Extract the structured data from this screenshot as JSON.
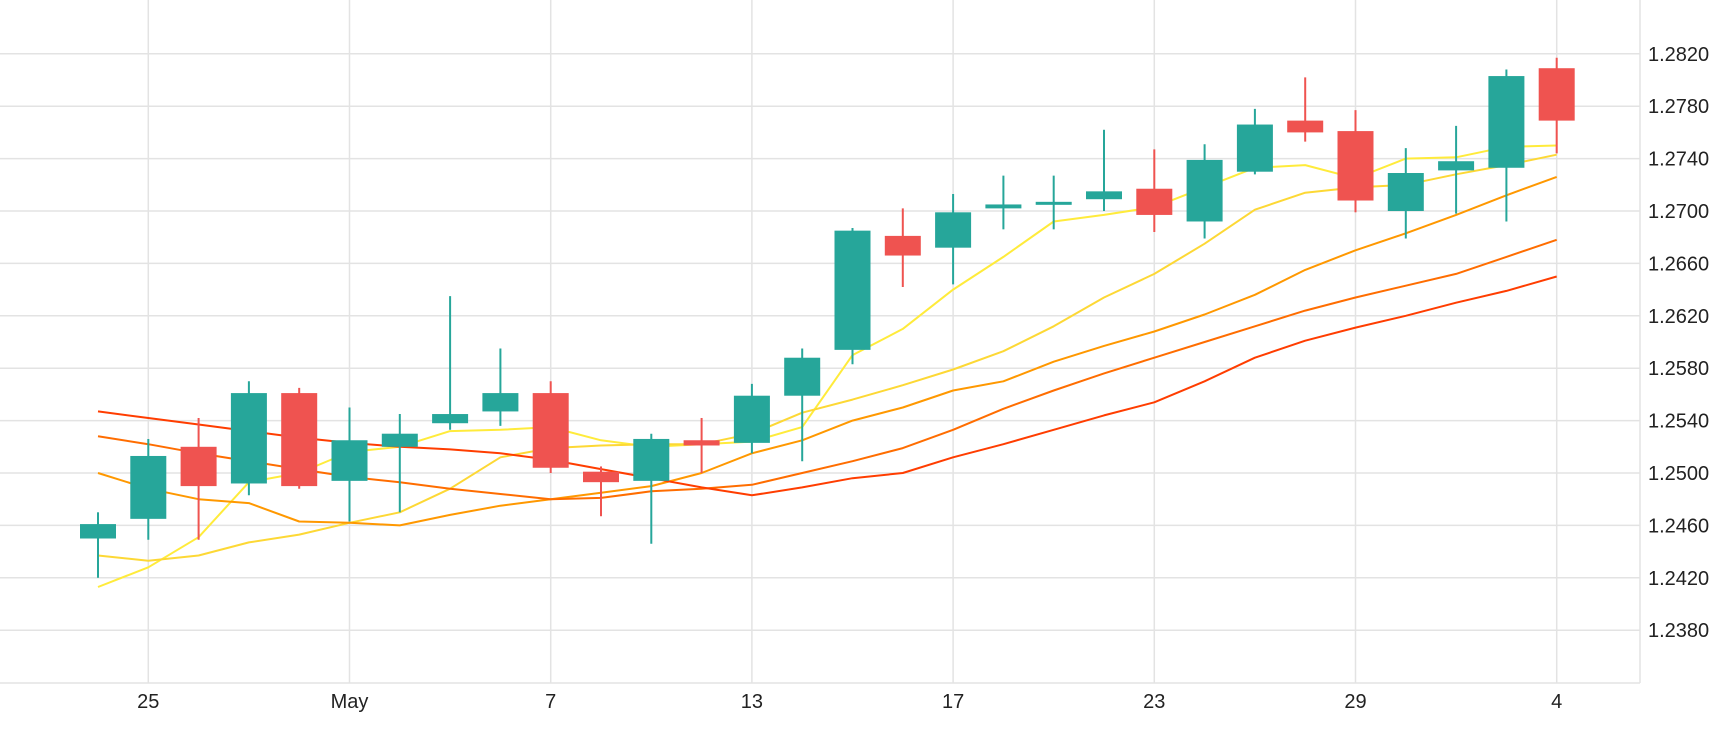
{
  "chart_data": {
    "type": "candlestick",
    "colors": {
      "up": "#26a69a",
      "down": "#ef5350",
      "grid": "#e3e3e3"
    },
    "x_ticks": [
      {
        "label": "25",
        "index": 1
      },
      {
        "label": "May",
        "index": 5
      },
      {
        "label": "7",
        "index": 9
      },
      {
        "label": "13",
        "index": 13
      },
      {
        "label": "17",
        "index": 17
      },
      {
        "label": "23",
        "index": 21
      },
      {
        "label": "29",
        "index": 25
      },
      {
        "label": "4",
        "index": 29
      }
    ],
    "y_ticks": [
      "1.2380",
      "1.2420",
      "1.2460",
      "1.2500",
      "1.2540",
      "1.2580",
      "1.2620",
      "1.2660",
      "1.2700",
      "1.2740",
      "1.2780",
      "1.2820"
    ],
    "ylim": [
      1.234,
      1.286
    ],
    "candles": [
      {
        "o": 1.245,
        "h": 1.247,
        "l": 1.242,
        "c": 1.2461
      },
      {
        "o": 1.2465,
        "h": 1.2526,
        "l": 1.2449,
        "c": 1.2513
      },
      {
        "o": 1.252,
        "h": 1.2542,
        "l": 1.2449,
        "c": 1.249
      },
      {
        "o": 1.2492,
        "h": 1.257,
        "l": 1.2483,
        "c": 1.2561
      },
      {
        "o": 1.2561,
        "h": 1.2565,
        "l": 1.2488,
        "c": 1.249
      },
      {
        "o": 1.2494,
        "h": 1.255,
        "l": 1.2463,
        "c": 1.2525
      },
      {
        "o": 1.252,
        "h": 1.2545,
        "l": 1.247,
        "c": 1.253
      },
      {
        "o": 1.2538,
        "h": 1.2635,
        "l": 1.2533,
        "c": 1.2545
      },
      {
        "o": 1.2547,
        "h": 1.2595,
        "l": 1.2536,
        "c": 1.2561
      },
      {
        "o": 1.2561,
        "h": 1.257,
        "l": 1.25,
        "c": 1.2504
      },
      {
        "o": 1.2501,
        "h": 1.2505,
        "l": 1.2467,
        "c": 1.2493
      },
      {
        "o": 1.2494,
        "h": 1.253,
        "l": 1.2446,
        "c": 1.2526
      },
      {
        "o": 1.2525,
        "h": 1.2542,
        "l": 1.25,
        "c": 1.2521
      },
      {
        "o": 1.2523,
        "h": 1.2568,
        "l": 1.2515,
        "c": 1.2559
      },
      {
        "o": 1.2559,
        "h": 1.2595,
        "l": 1.2509,
        "c": 1.2588
      },
      {
        "o": 1.2594,
        "h": 1.2687,
        "l": 1.2583,
        "c": 1.2685
      },
      {
        "o": 1.2681,
        "h": 1.2702,
        "l": 1.2642,
        "c": 1.2666
      },
      {
        "o": 1.2672,
        "h": 1.2713,
        "l": 1.2644,
        "c": 1.2699
      },
      {
        "o": 1.2702,
        "h": 1.2727,
        "l": 1.2686,
        "c": 1.2705
      },
      {
        "o": 1.2706,
        "h": 1.2727,
        "l": 1.2686,
        "c": 1.2707
      },
      {
        "o": 1.2709,
        "h": 1.2762,
        "l": 1.27,
        "c": 1.2715
      },
      {
        "o": 1.2717,
        "h": 1.2747,
        "l": 1.2684,
        "c": 1.2697
      },
      {
        "o": 1.2692,
        "h": 1.2751,
        "l": 1.2679,
        "c": 1.2739
      },
      {
        "o": 1.273,
        "h": 1.2778,
        "l": 1.2728,
        "c": 1.2766
      },
      {
        "o": 1.2769,
        "h": 1.2802,
        "l": 1.2753,
        "c": 1.276
      },
      {
        "o": 1.2761,
        "h": 1.2777,
        "l": 1.2699,
        "c": 1.2708
      },
      {
        "o": 1.27,
        "h": 1.2748,
        "l": 1.2679,
        "c": 1.2729
      },
      {
        "o": 1.2731,
        "h": 1.2765,
        "l": 1.2698,
        "c": 1.2738
      },
      {
        "o": 1.2733,
        "h": 1.2808,
        "l": 1.2692,
        "c": 1.2803
      },
      {
        "o": 1.2809,
        "h": 1.2817,
        "l": 1.2744,
        "c": 1.2769
      }
    ],
    "series": [
      {
        "color": "#ffeb3b",
        "values": [
          1.2413,
          1.2428,
          1.2451,
          1.2493,
          1.25,
          1.2516,
          1.252,
          1.2532,
          1.2533,
          1.2535,
          1.2525,
          1.252,
          1.2522,
          1.2524,
          1.2535,
          1.259,
          1.261,
          1.264,
          1.2665,
          1.2692,
          1.2697,
          1.2703,
          1.2718,
          1.2733,
          1.2735,
          1.2725,
          1.274,
          1.2741,
          1.2749,
          1.275
        ]
      },
      {
        "color": "#fdd835",
        "values": [
          1.2437,
          1.2433,
          1.2437,
          1.2447,
          1.2453,
          1.2462,
          1.247,
          1.2488,
          1.2512,
          1.2519,
          1.2521,
          1.2522,
          1.2522,
          1.253,
          1.2546,
          1.2556,
          1.2567,
          1.2579,
          1.2593,
          1.2612,
          1.2634,
          1.2652,
          1.2675,
          1.2701,
          1.2714,
          1.2718,
          1.272,
          1.2728,
          1.2735,
          1.2743
        ]
      },
      {
        "color": "#ff9800",
        "values": [
          1.25,
          1.2488,
          1.248,
          1.2477,
          1.2463,
          1.2462,
          1.246,
          1.2468,
          1.2475,
          1.248,
          1.2485,
          1.249,
          1.25,
          1.2515,
          1.2525,
          1.254,
          1.255,
          1.2563,
          1.257,
          1.2585,
          1.2597,
          1.2608,
          1.2621,
          1.2636,
          1.2655,
          1.267,
          1.2683,
          1.2697,
          1.2712,
          1.2726
        ]
      },
      {
        "color": "#ff6d00",
        "values": [
          1.2528,
          1.2522,
          1.2515,
          1.2509,
          1.2503,
          1.2497,
          1.2493,
          1.2488,
          1.2484,
          1.248,
          1.2481,
          1.2486,
          1.2488,
          1.2491,
          1.25,
          1.2509,
          1.2519,
          1.2533,
          1.2549,
          1.2563,
          1.2576,
          1.2588,
          1.26,
          1.2612,
          1.2624,
          1.2634,
          1.2643,
          1.2652,
          1.2665,
          1.2678
        ]
      },
      {
        "color": "#ff3d00",
        "values": [
          1.2547,
          1.2542,
          1.2537,
          1.2532,
          1.2527,
          1.2523,
          1.252,
          1.2518,
          1.2515,
          1.251,
          1.2503,
          1.2496,
          1.2489,
          1.2483,
          1.2489,
          1.2496,
          1.25,
          1.2512,
          1.2522,
          1.2533,
          1.2544,
          1.2554,
          1.257,
          1.2588,
          1.2601,
          1.2611,
          1.262,
          1.263,
          1.2639,
          1.265
        ]
      }
    ]
  }
}
